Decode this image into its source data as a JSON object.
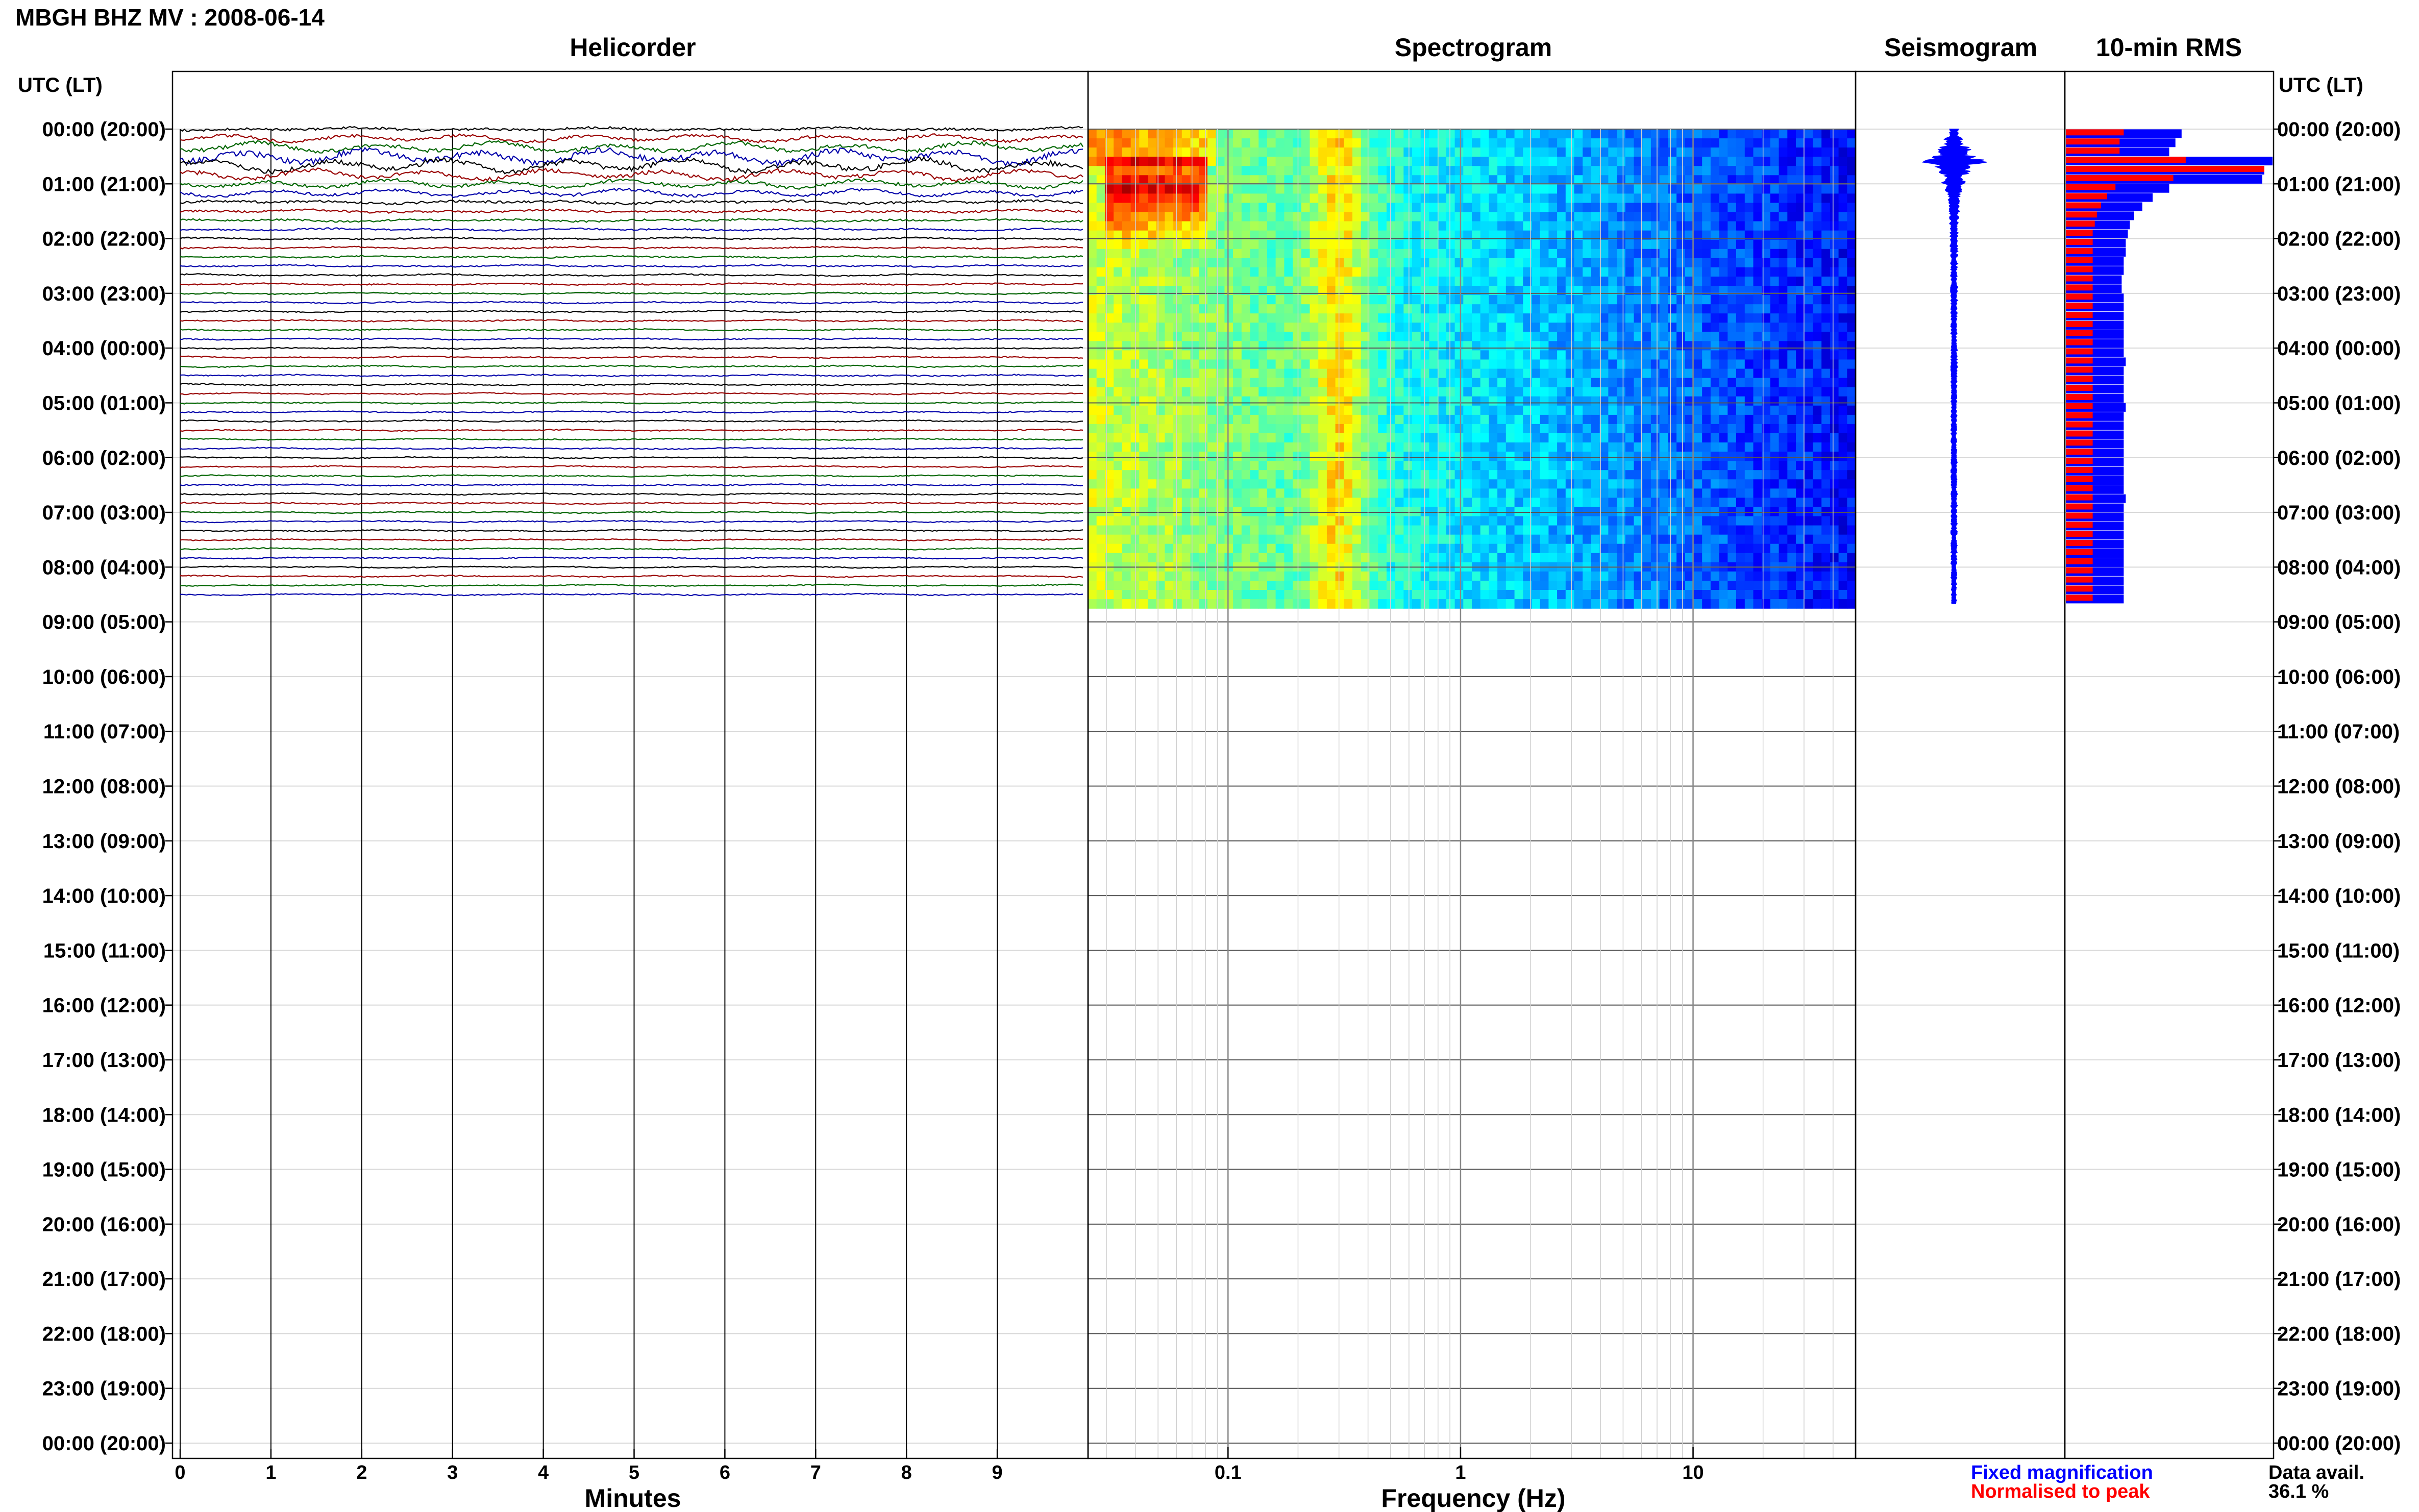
{
  "title": "MBGH BHZ MV : 2008-06-14",
  "panels": {
    "helicorder": "Helicorder",
    "spectrogram": "Spectrogram",
    "seismogram": "Seismogram",
    "rms": "10-min RMS"
  },
  "time_axis_header": "UTC (LT)",
  "hour_labels": [
    "00:00 (20:00)",
    "01:00 (21:00)",
    "02:00 (22:00)",
    "03:00 (23:00)",
    "04:00 (00:00)",
    "05:00 (01:00)",
    "06:00 (02:00)",
    "07:00 (03:00)",
    "08:00 (04:00)",
    "09:00 (05:00)",
    "10:00 (06:00)",
    "11:00 (07:00)",
    "12:00 (08:00)",
    "13:00 (09:00)",
    "14:00 (10:00)",
    "15:00 (11:00)",
    "16:00 (12:00)",
    "17:00 (13:00)",
    "18:00 (14:00)",
    "19:00 (15:00)",
    "20:00 (16:00)",
    "21:00 (17:00)",
    "22:00 (18:00)",
    "23:00 (19:00)",
    "00:00 (20:00)"
  ],
  "legend": {
    "fixed": "Fixed magnification",
    "normalised": "Normalised to peak",
    "fixed_color": "#0000ff",
    "normalised_color": "#ff0000"
  },
  "data_avail": {
    "label": "Data avail.",
    "value": "36.1 %"
  },
  "chart_data": [
    {
      "type": "line",
      "panel": "helicorder",
      "xlabel": "Minutes",
      "x_ticks": [
        "0",
        "1",
        "2",
        "3",
        "4",
        "5",
        "6",
        "7",
        "8",
        "9"
      ],
      "xlim": [
        0,
        10
      ],
      "trace_colors": [
        "#000000",
        "#990000",
        "#006600",
        "#0000aa"
      ],
      "rows_per_hour": 6,
      "data_end_utc_hours": 8.67,
      "amplitude_note_rows": [
        0.9,
        1.1,
        1.5,
        2.2,
        2.0,
        1.6,
        1.3,
        1.1,
        0.9,
        0.8,
        0.7,
        0.6,
        0.55,
        0.5,
        0.5,
        0.5,
        0.48,
        0.46,
        0.45,
        0.45,
        0.44,
        0.44,
        0.43,
        0.43,
        0.42,
        0.42,
        0.42,
        0.41,
        0.41,
        0.41,
        0.4,
        0.4,
        0.4,
        0.4,
        0.4,
        0.4,
        0.4,
        0.4,
        0.4,
        0.4,
        0.4,
        0.4,
        0.4,
        0.4,
        0.4,
        0.4,
        0.4,
        0.4,
        0.4,
        0.4,
        0.4,
        0.4
      ]
    },
    {
      "type": "heatmap",
      "panel": "spectrogram",
      "xlabel": "Frequency (Hz)",
      "x_scale": "log",
      "xlim": [
        0.025,
        50
      ],
      "x_ticks": [
        "0.1",
        "1",
        "10"
      ],
      "rows": 52,
      "colormap": "jet",
      "low_freq_peak_hz": [
        0.03,
        0.08
      ],
      "low_freq_peak_utc_hours": [
        0.5,
        2.0
      ],
      "secondary_band_hz": 0.3
    },
    {
      "type": "line",
      "panel": "seismogram",
      "color": "#0000ff",
      "envelope_rows": [
        0.5,
        1.0,
        1.6,
        3.2,
        1.9,
        1.3,
        0.9,
        0.7,
        0.6,
        0.5,
        0.45,
        0.42,
        0.4,
        0.38,
        0.37,
        0.36,
        0.36,
        0.35,
        0.35,
        0.35,
        0.34,
        0.34,
        0.34,
        0.33,
        0.33,
        0.33,
        0.33,
        0.33,
        0.32,
        0.32,
        0.32,
        0.32,
        0.32,
        0.32,
        0.32,
        0.32,
        0.32,
        0.32,
        0.32,
        0.32,
        0.32,
        0.32,
        0.32,
        0.32,
        0.32,
        0.32,
        0.32,
        0.32,
        0.32,
        0.32,
        0.32,
        0.32
      ]
    },
    {
      "type": "bar",
      "panel": "rms",
      "orientation": "horizontal",
      "series": [
        {
          "name": "Fixed magnification",
          "color": "#0000ff",
          "values": [
            0.56,
            0.53,
            0.5,
            1.0,
            0.96,
            0.95,
            0.5,
            0.42,
            0.37,
            0.33,
            0.31,
            0.3,
            0.29,
            0.29,
            0.28,
            0.28,
            0.27,
            0.27,
            0.28,
            0.28,
            0.28,
            0.28,
            0.28,
            0.28,
            0.28,
            0.29,
            0.28,
            0.28,
            0.28,
            0.28,
            0.29,
            0.28,
            0.28,
            0.28,
            0.28,
            0.28,
            0.28,
            0.28,
            0.28,
            0.28,
            0.29,
            0.28,
            0.28,
            0.28,
            0.28,
            0.28,
            0.28,
            0.28,
            0.28,
            0.28,
            0.28,
            0.28
          ]
        },
        {
          "name": "Normalised to peak",
          "color": "#ff0000",
          "values": [
            0.28,
            0.26,
            0.26,
            0.58,
            0.96,
            0.52,
            0.24,
            0.2,
            0.17,
            0.15,
            0.14,
            0.13,
            0.13,
            0.13,
            0.13,
            0.13,
            0.13,
            0.13,
            0.13,
            0.13,
            0.13,
            0.13,
            0.13,
            0.13,
            0.13,
            0.13,
            0.13,
            0.13,
            0.13,
            0.13,
            0.13,
            0.13,
            0.13,
            0.13,
            0.13,
            0.13,
            0.13,
            0.13,
            0.13,
            0.13,
            0.13,
            0.13,
            0.13,
            0.13,
            0.13,
            0.13,
            0.13,
            0.13,
            0.13,
            0.13,
            0.13,
            0.13
          ]
        }
      ]
    }
  ]
}
